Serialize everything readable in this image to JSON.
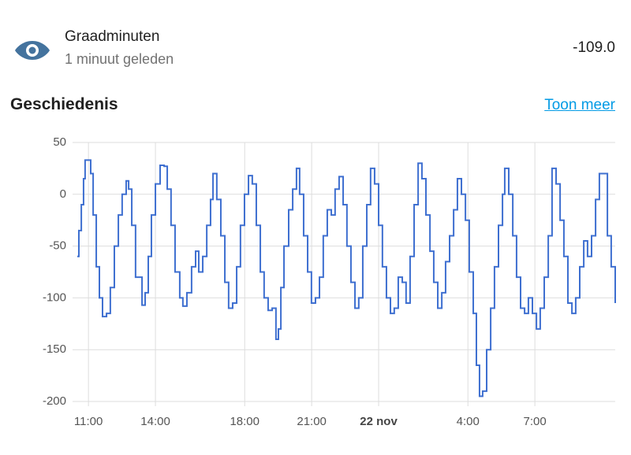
{
  "entity": {
    "name": "Graadminuten",
    "last_changed": "1 minuut geleden",
    "state": "-109.0"
  },
  "history": {
    "title": "Geschiedenis",
    "link": "Toon meer"
  },
  "chart_data": {
    "type": "line",
    "step": true,
    "color": "#3e6fd0",
    "grid": true,
    "xlim": [
      10.5,
      34.6
    ],
    "ylim": [
      -200,
      50
    ],
    "yticks": [
      -200,
      -150,
      -100,
      -50,
      0,
      50
    ],
    "xticks": [
      {
        "value": 11,
        "label": "11:00"
      },
      {
        "value": 14,
        "label": "14:00"
      },
      {
        "value": 18,
        "label": "18:00"
      },
      {
        "value": 21,
        "label": "21:00"
      },
      {
        "value": 24,
        "label": "22 nov"
      },
      {
        "value": 28,
        "label": "4:00"
      },
      {
        "value": 31,
        "label": "7:00"
      }
    ],
    "x": [
      10.5,
      10.57,
      10.68,
      10.78,
      10.85,
      11.1,
      11.21,
      11.35,
      11.49,
      11.63,
      11.81,
      11.98,
      12.16,
      12.34,
      12.51,
      12.69,
      12.8,
      12.94,
      13.11,
      13.4,
      13.54,
      13.68,
      13.82,
      14.0,
      14.21,
      14.39,
      14.53,
      14.7,
      14.88,
      15.09,
      15.23,
      15.41,
      15.62,
      15.8,
      15.94,
      16.12,
      16.3,
      16.47,
      16.58,
      16.75,
      16.93,
      17.11,
      17.28,
      17.46,
      17.64,
      17.81,
      17.99,
      18.17,
      18.34,
      18.52,
      18.7,
      18.87,
      19.05,
      19.23,
      19.4,
      19.51,
      19.62,
      19.76,
      19.97,
      20.15,
      20.32,
      20.46,
      20.64,
      20.82,
      20.99,
      21.17,
      21.35,
      21.52,
      21.7,
      21.88,
      22.05,
      22.23,
      22.41,
      22.58,
      22.76,
      22.94,
      23.11,
      23.29,
      23.47,
      23.64,
      23.82,
      24.0,
      24.17,
      24.35,
      24.53,
      24.7,
      24.88,
      25.06,
      25.23,
      25.41,
      25.59,
      25.77,
      25.94,
      26.12,
      26.3,
      26.47,
      26.65,
      26.83,
      27.0,
      27.18,
      27.36,
      27.53,
      27.71,
      27.89,
      28.06,
      28.24,
      28.38,
      28.52,
      28.66,
      28.84,
      29.02,
      29.19,
      29.37,
      29.55,
      29.65,
      29.83,
      30.01,
      30.18,
      30.36,
      30.54,
      30.71,
      30.89,
      31.07,
      31.24,
      31.42,
      31.6,
      31.77,
      31.95,
      32.13,
      32.3,
      32.48,
      32.66,
      32.83,
      33.01,
      33.19,
      33.36,
      33.54,
      33.72,
      33.89,
      34.07,
      34.25,
      34.42,
      34.6
    ],
    "values": [
      -60,
      -35,
      -10,
      15,
      33,
      20,
      -20,
      -70,
      -100,
      -118,
      -115,
      -90,
      -50,
      -20,
      0,
      13,
      5,
      -30,
      -80,
      -107,
      -95,
      -60,
      -20,
      10,
      28,
      27,
      5,
      -30,
      -75,
      -100,
      -108,
      -95,
      -70,
      -55,
      -75,
      -60,
      -30,
      -5,
      20,
      -5,
      -40,
      -85,
      -110,
      -105,
      -70,
      -30,
      0,
      18,
      10,
      -30,
      -75,
      -100,
      -112,
      -110,
      -140,
      -130,
      -90,
      -50,
      -15,
      5,
      25,
      0,
      -40,
      -75,
      -105,
      -100,
      -80,
      -40,
      -15,
      -20,
      5,
      17,
      -10,
      -50,
      -85,
      -110,
      -100,
      -50,
      -10,
      25,
      10,
      -30,
      -70,
      -100,
      -115,
      -110,
      -80,
      -85,
      -105,
      -60,
      -10,
      30,
      15,
      -20,
      -55,
      -85,
      -110,
      -95,
      -65,
      -40,
      -15,
      15,
      0,
      -25,
      -75,
      -115,
      -165,
      -195,
      -190,
      -150,
      -110,
      -70,
      -30,
      0,
      25,
      0,
      -40,
      -80,
      -110,
      -115,
      -100,
      -115,
      -130,
      -110,
      -80,
      -40,
      25,
      10,
      -25,
      -60,
      -105,
      -115,
      -100,
      -70,
      -45,
      -60,
      -40,
      -5,
      20,
      20,
      -40,
      -70,
      -105
    ]
  }
}
